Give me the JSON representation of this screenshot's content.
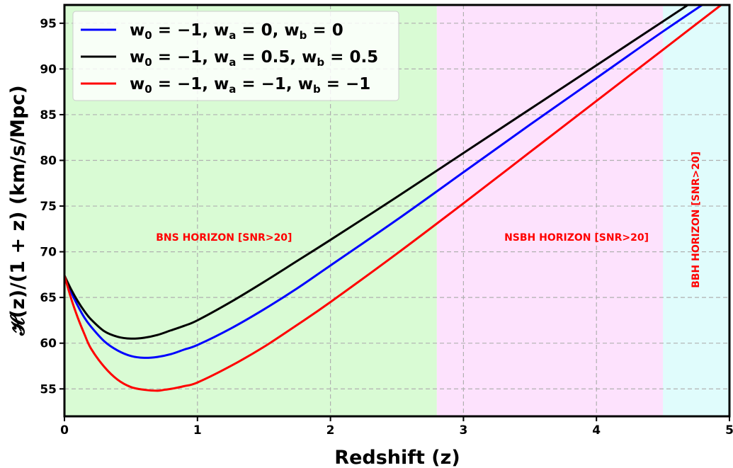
{
  "chart_data": {
    "type": "line",
    "xlabel": "Redshift (z)",
    "ylabel": "𝓗(z)/(1 + z) (km/s/Mpc)",
    "xlim": [
      0,
      5
    ],
    "ylim": [
      52,
      97
    ],
    "xticks": [
      0,
      1,
      2,
      3,
      4,
      5
    ],
    "yticks": [
      55,
      60,
      65,
      70,
      75,
      80,
      85,
      90,
      95
    ],
    "grid": true,
    "legend_position": "top-left",
    "regions": [
      {
        "label": "BNS HORIZON [SNR>20]",
        "x_range": [
          0,
          2.8
        ],
        "color": "#d9fbd4",
        "label_x": 1.2,
        "label_y": 71.5,
        "orientation": "horizontal"
      },
      {
        "label": "NSBH HORIZON [SNR>20]",
        "x_range": [
          2.8,
          4.5
        ],
        "color": "#fde2fd",
        "label_x": 3.85,
        "label_y": 71.5,
        "orientation": "horizontal"
      },
      {
        "label": "BBH HORIZON [SNR>20]",
        "x_range": [
          4.5,
          5
        ],
        "color": "#e0fcfc",
        "label_x": 4.75,
        "label_y": 73.5,
        "orientation": "vertical"
      }
    ],
    "series": [
      {
        "name": "w0 = −1, wa = 0, wb = 0",
        "legend": {
          "w0": "−1",
          "wa": "0",
          "wb": "0"
        },
        "color": "#0000ff",
        "x": [
          0,
          0.05,
          0.1,
          0.15,
          0.2,
          0.3,
          0.4,
          0.5,
          0.6,
          0.7,
          0.8,
          0.9,
          1.0,
          1.25,
          1.5,
          1.75,
          2.0,
          2.5,
          3.0,
          3.5,
          4.0,
          4.5,
          5.0
        ],
        "y": [
          67.4,
          65.6,
          64.1,
          62.8,
          61.8,
          60.2,
          59.2,
          58.6,
          58.4,
          58.5,
          58.8,
          59.3,
          59.8,
          61.6,
          63.7,
          66.0,
          68.5,
          73.5,
          78.7,
          83.9,
          89.0,
          94.1,
          99.0
        ]
      },
      {
        "name": "w0 = −1, wa = 0.5, wb = 0.5",
        "legend": {
          "w0": "−1",
          "wa": "0.5",
          "wb": "0.5"
        },
        "color": "#000000",
        "x": [
          0,
          0.05,
          0.1,
          0.15,
          0.2,
          0.3,
          0.4,
          0.5,
          0.6,
          0.7,
          0.8,
          0.9,
          1.0,
          1.25,
          1.5,
          1.75,
          2.0,
          2.5,
          3.0,
          3.5,
          4.0,
          4.5,
          5.0
        ],
        "y": [
          67.4,
          65.9,
          64.6,
          63.5,
          62.6,
          61.3,
          60.7,
          60.5,
          60.6,
          60.9,
          61.4,
          61.9,
          62.5,
          64.5,
          66.7,
          69.0,
          71.3,
          76.0,
          80.8,
          85.6,
          90.4,
          95.2,
          100.0
        ]
      },
      {
        "name": "w0 = −1, wa = −1, wb = −1",
        "legend": {
          "w0": "−1",
          "wa": "−1",
          "wb": "−1"
        },
        "color": "#ff0000",
        "x": [
          0,
          0.05,
          0.1,
          0.15,
          0.2,
          0.3,
          0.4,
          0.5,
          0.6,
          0.7,
          0.75,
          0.8,
          0.9,
          1.0,
          1.25,
          1.5,
          1.75,
          2.0,
          2.5,
          3.0,
          3.5,
          4.0,
          4.5,
          5.0
        ],
        "y": [
          67.4,
          64.9,
          62.8,
          61.0,
          59.4,
          57.4,
          56.0,
          55.2,
          54.9,
          54.8,
          54.9,
          55.0,
          55.3,
          55.7,
          57.5,
          59.6,
          62.0,
          64.5,
          69.8,
          75.3,
          80.9,
          86.5,
          92.1,
          97.7
        ]
      }
    ]
  }
}
